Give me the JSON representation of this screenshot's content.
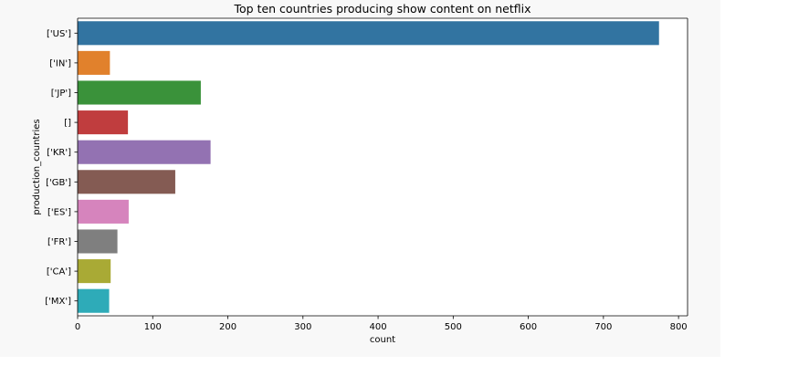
{
  "chart_data": {
    "type": "bar",
    "orientation": "horizontal",
    "title": "Top ten countries producing show content on netflix",
    "xlabel": "count",
    "ylabel": "production_countries",
    "xlim": [
      0,
      812
    ],
    "x_ticks": [
      0,
      100,
      200,
      300,
      400,
      500,
      600,
      700,
      800
    ],
    "grid": false,
    "categories": [
      "['US']",
      "['IN']",
      "['JP']",
      "[]",
      "['KR']",
      "['GB']",
      "['ES']",
      "['FR']",
      "['CA']",
      "['MX']"
    ],
    "values": [
      774,
      43,
      164,
      67,
      177,
      130,
      68,
      53,
      44,
      42
    ],
    "colors": [
      "#3274a1",
      "#e1812c",
      "#3a923a",
      "#c03d3e",
      "#9372b2",
      "#845b53",
      "#d684bd",
      "#7f7f7f",
      "#a9aa35",
      "#2eabb8"
    ]
  }
}
